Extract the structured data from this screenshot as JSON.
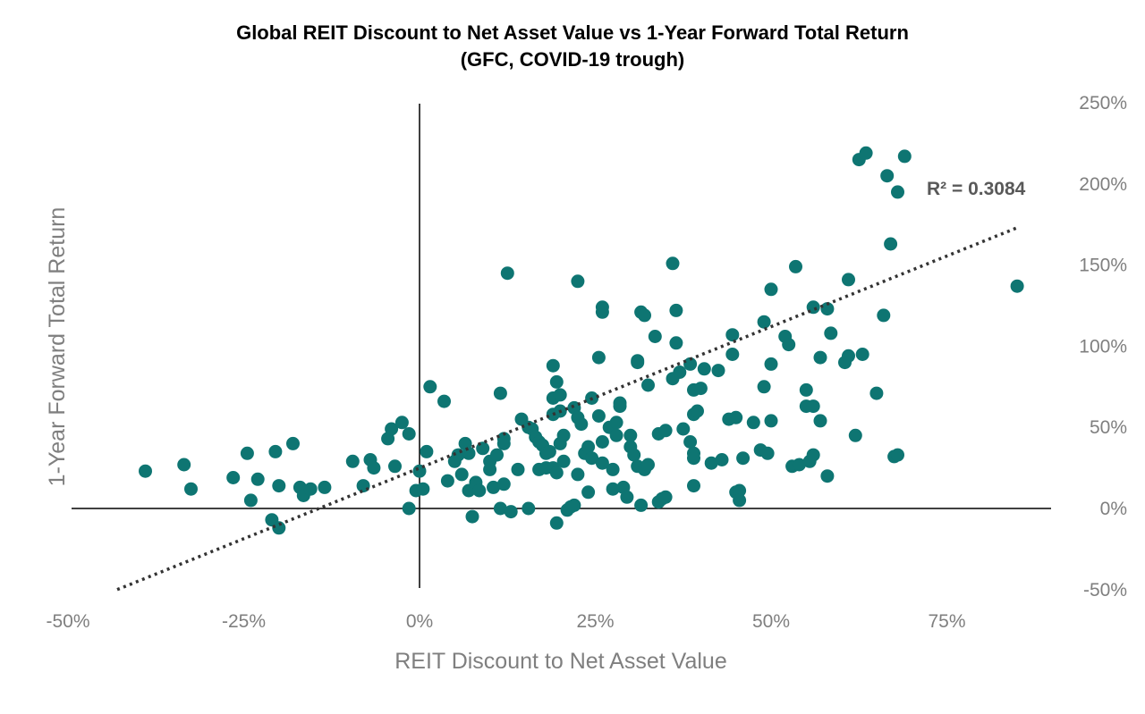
{
  "chart_data": {
    "type": "scatter",
    "title": "Global REIT Discount to Net Asset Value vs 1-Year Forward Total Return",
    "subtitle": "(GFC, COVID-19 trough)",
    "xlabel": "REIT Discount to Net Asset Value",
    "ylabel": "1-Year Forward Total Return",
    "xlim": [
      -0.5,
      0.9
    ],
    "ylim": [
      -0.5,
      2.5
    ],
    "x_ticks": [
      -0.5,
      -0.25,
      0,
      0.25,
      0.5,
      0.75
    ],
    "x_tick_labels": [
      "-50%",
      "-25%",
      "0%",
      "25%",
      "50%",
      "75%"
    ],
    "y_ticks": [
      -0.5,
      0,
      0.5,
      1.0,
      1.5,
      2.0,
      2.5
    ],
    "y_tick_labels": [
      "-50%",
      "0%",
      "50%",
      "100%",
      "150%",
      "200%",
      "250%"
    ],
    "grid": false,
    "legend": "none",
    "marker_color": "#0e7572",
    "trendline": {
      "style": "dotted",
      "color": "#333333",
      "points": [
        [
          -0.43,
          -0.5
        ],
        [
          0.85,
          1.73
        ]
      ]
    },
    "annotation": "R² = 0.3084",
    "points": [
      [
        -0.39,
        0.23
      ],
      [
        -0.335,
        0.27
      ],
      [
        -0.325,
        0.12
      ],
      [
        -0.265,
        0.19
      ],
      [
        -0.245,
        0.34
      ],
      [
        -0.24,
        0.05
      ],
      [
        -0.23,
        0.18
      ],
      [
        -0.21,
        -0.07
      ],
      [
        -0.205,
        0.35
      ],
      [
        -0.2,
        -0.12
      ],
      [
        -0.2,
        0.14
      ],
      [
        -0.18,
        0.4
      ],
      [
        -0.17,
        0.13
      ],
      [
        -0.165,
        0.08
      ],
      [
        -0.155,
        0.12
      ],
      [
        -0.135,
        0.13
      ],
      [
        -0.095,
        0.29
      ],
      [
        -0.08,
        0.14
      ],
      [
        -0.07,
        0.3
      ],
      [
        -0.065,
        0.25
      ],
      [
        -0.045,
        0.43
      ],
      [
        -0.04,
        0.49
      ],
      [
        -0.035,
        0.26
      ],
      [
        -0.025,
        0.53
      ],
      [
        -0.015,
        0.46
      ],
      [
        -0.015,
        0.0
      ],
      [
        -0.0,
        0.23
      ],
      [
        -0.005,
        0.11
      ],
      [
        0.005,
        0.12
      ],
      [
        0.01,
        0.35
      ],
      [
        0.015,
        0.75
      ],
      [
        0.035,
        0.66
      ],
      [
        0.04,
        0.17
      ],
      [
        0.05,
        0.29
      ],
      [
        0.055,
        0.33
      ],
      [
        0.065,
        0.4
      ],
      [
        0.06,
        0.21
      ],
      [
        0.07,
        0.34
      ],
      [
        0.07,
        0.11
      ],
      [
        0.075,
        -0.05
      ],
      [
        0.08,
        0.16
      ],
      [
        0.085,
        0.11
      ],
      [
        0.09,
        0.37
      ],
      [
        0.1,
        0.29
      ],
      [
        0.1,
        0.24
      ],
      [
        0.105,
        0.13
      ],
      [
        0.11,
        0.33
      ],
      [
        0.115,
        0.71
      ],
      [
        0.115,
        0.0
      ],
      [
        0.12,
        0.15
      ],
      [
        0.12,
        0.4
      ],
      [
        0.12,
        0.43
      ],
      [
        0.125,
        1.45
      ],
      [
        0.13,
        -0.02
      ],
      [
        0.14,
        0.24
      ],
      [
        0.145,
        0.55
      ],
      [
        0.155,
        0.0
      ],
      [
        0.155,
        0.5
      ],
      [
        0.16,
        0.49
      ],
      [
        0.165,
        0.44
      ],
      [
        0.17,
        0.41
      ],
      [
        0.17,
        0.24
      ],
      [
        0.175,
        0.39
      ],
      [
        0.18,
        0.25
      ],
      [
        0.18,
        0.34
      ],
      [
        0.185,
        0.35
      ],
      [
        0.19,
        0.88
      ],
      [
        0.19,
        0.68
      ],
      [
        0.19,
        0.58
      ],
      [
        0.19,
        0.25
      ],
      [
        0.195,
        -0.09
      ],
      [
        0.195,
        0.78
      ],
      [
        0.195,
        0.22
      ],
      [
        0.2,
        0.7
      ],
      [
        0.2,
        0.6
      ],
      [
        0.2,
        0.4
      ],
      [
        0.205,
        0.29
      ],
      [
        0.205,
        0.45
      ],
      [
        0.21,
        -0.01
      ],
      [
        0.215,
        0.01
      ],
      [
        0.22,
        0.62
      ],
      [
        0.22,
        0.02
      ],
      [
        0.225,
        1.4
      ],
      [
        0.225,
        0.56
      ],
      [
        0.225,
        0.21
      ],
      [
        0.23,
        0.52
      ],
      [
        0.235,
        0.34
      ],
      [
        0.24,
        0.1
      ],
      [
        0.24,
        0.38
      ],
      [
        0.245,
        0.31
      ],
      [
        0.245,
        0.68
      ],
      [
        0.255,
        0.93
      ],
      [
        0.255,
        0.57
      ],
      [
        0.26,
        0.41
      ],
      [
        0.26,
        1.21
      ],
      [
        0.26,
        1.24
      ],
      [
        0.26,
        0.28
      ],
      [
        0.27,
        0.5
      ],
      [
        0.275,
        0.24
      ],
      [
        0.275,
        0.12
      ],
      [
        0.28,
        0.53
      ],
      [
        0.28,
        0.45
      ],
      [
        0.285,
        0.63
      ],
      [
        0.285,
        0.65
      ],
      [
        0.29,
        0.13
      ],
      [
        0.295,
        0.07
      ],
      [
        0.3,
        0.45
      ],
      [
        0.3,
        0.38
      ],
      [
        0.305,
        0.33
      ],
      [
        0.31,
        0.91
      ],
      [
        0.31,
        0.9
      ],
      [
        0.31,
        0.26
      ],
      [
        0.315,
        0.02
      ],
      [
        0.315,
        1.21
      ],
      [
        0.32,
        0.24
      ],
      [
        0.32,
        1.19
      ],
      [
        0.325,
        0.76
      ],
      [
        0.325,
        0.27
      ],
      [
        0.335,
        1.06
      ],
      [
        0.34,
        0.46
      ],
      [
        0.34,
        0.04
      ],
      [
        0.345,
        0.06
      ],
      [
        0.35,
        0.07
      ],
      [
        0.35,
        0.48
      ],
      [
        0.36,
        0.8
      ],
      [
        0.36,
        1.51
      ],
      [
        0.365,
        1.22
      ],
      [
        0.365,
        1.02
      ],
      [
        0.37,
        0.84
      ],
      [
        0.375,
        0.49
      ],
      [
        0.385,
        0.41
      ],
      [
        0.385,
        0.89
      ],
      [
        0.39,
        0.58
      ],
      [
        0.39,
        0.73
      ],
      [
        0.39,
        0.14
      ],
      [
        0.39,
        0.34
      ],
      [
        0.39,
        0.31
      ],
      [
        0.395,
        0.6
      ],
      [
        0.4,
        0.74
      ],
      [
        0.405,
        0.86
      ],
      [
        0.415,
        0.28
      ],
      [
        0.425,
        0.85
      ],
      [
        0.43,
        0.3
      ],
      [
        0.44,
        0.55
      ],
      [
        0.445,
        1.07
      ],
      [
        0.445,
        0.95
      ],
      [
        0.45,
        0.56
      ],
      [
        0.45,
        0.1
      ],
      [
        0.455,
        0.11
      ],
      [
        0.455,
        0.05
      ],
      [
        0.46,
        0.31
      ],
      [
        0.475,
        0.53
      ],
      [
        0.485,
        0.36
      ],
      [
        0.49,
        1.15
      ],
      [
        0.49,
        0.75
      ],
      [
        0.495,
        0.34
      ],
      [
        0.5,
        1.35
      ],
      [
        0.5,
        0.89
      ],
      [
        0.5,
        0.54
      ],
      [
        0.52,
        1.06
      ],
      [
        0.525,
        1.01
      ],
      [
        0.53,
        0.26
      ],
      [
        0.535,
        1.49
      ],
      [
        0.54,
        0.27
      ],
      [
        0.55,
        0.73
      ],
      [
        0.55,
        0.63
      ],
      [
        0.555,
        0.29
      ],
      [
        0.56,
        1.24
      ],
      [
        0.56,
        0.63
      ],
      [
        0.56,
        0.33
      ],
      [
        0.57,
        0.93
      ],
      [
        0.57,
        0.54
      ],
      [
        0.58,
        1.23
      ],
      [
        0.58,
        0.2
      ],
      [
        0.585,
        1.08
      ],
      [
        0.605,
        0.9
      ],
      [
        0.61,
        0.94
      ],
      [
        0.61,
        1.41
      ],
      [
        0.62,
        0.45
      ],
      [
        0.625,
        2.15
      ],
      [
        0.635,
        2.19
      ],
      [
        0.63,
        0.95
      ],
      [
        0.65,
        0.71
      ],
      [
        0.66,
        1.19
      ],
      [
        0.665,
        2.05
      ],
      [
        0.67,
        1.63
      ],
      [
        0.675,
        0.32
      ],
      [
        0.68,
        0.33
      ],
      [
        0.68,
        1.95
      ],
      [
        0.69,
        2.17
      ],
      [
        0.85,
        1.37
      ]
    ]
  }
}
